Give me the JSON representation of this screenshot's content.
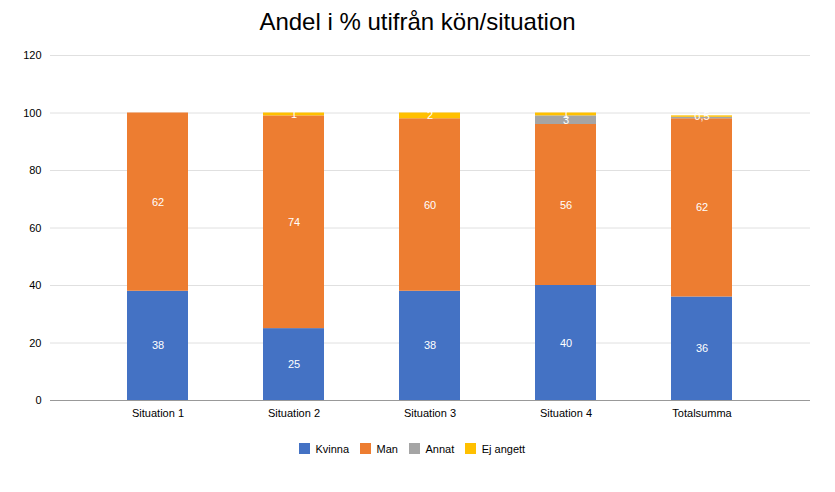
{
  "chart_data": {
    "type": "bar",
    "title": "Andel i % utifrån kön/situation",
    "categories": [
      "Situation 1",
      "Situation 2",
      "Situation 3",
      "Situation 4",
      "Totalsumma"
    ],
    "series": [
      {
        "name": "Kvinna",
        "color": "#4472C4",
        "values": [
          38,
          25,
          38,
          40,
          36
        ],
        "value_labels": [
          "38",
          "25",
          "38",
          "40",
          "36"
        ]
      },
      {
        "name": "Man",
        "color": "#ED7D31",
        "values": [
          62,
          74,
          60,
          56,
          62
        ],
        "value_labels": [
          "62",
          "74",
          "60",
          "56",
          "62"
        ]
      },
      {
        "name": "Annat",
        "color": "#A5A5A5",
        "values": [
          0,
          0,
          0,
          3,
          0.5
        ],
        "value_labels": [
          null,
          null,
          null,
          "3",
          null
        ]
      },
      {
        "name": "Ej angett",
        "color": "#FFC000",
        "values": [
          0,
          1,
          2,
          1,
          0.5
        ],
        "value_labels": [
          null,
          "1",
          "2",
          "1",
          "0,5"
        ]
      }
    ],
    "ylim": [
      0,
      120
    ],
    "yticks": [
      0,
      20,
      40,
      60,
      80,
      100,
      120
    ],
    "stacked": true,
    "data_labels": true,
    "grid": true,
    "legend": "bottom"
  }
}
